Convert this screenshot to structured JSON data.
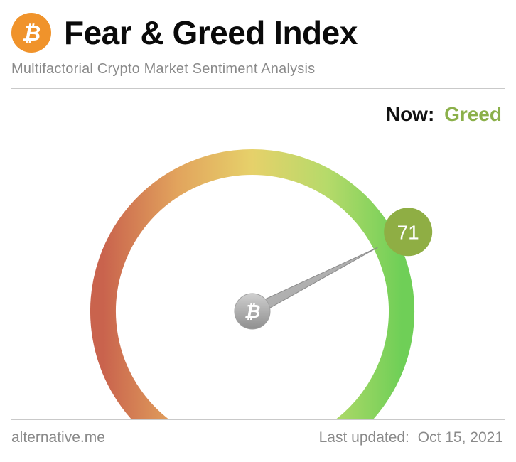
{
  "header": {
    "logo_icon": "bitcoin-icon",
    "logo_glyph": "₿",
    "title": "Fear & Greed Index",
    "subtitle": "Multifactorial Crypto Market Sentiment Analysis"
  },
  "status": {
    "now_label": "Now:",
    "now_value": "Greed",
    "now_color": "#8bb04a"
  },
  "gauge": {
    "value": 71,
    "min": 0,
    "max": 100,
    "badge_text": "71",
    "badge_color": "#8fae44",
    "hub_icon": "bitcoin-icon",
    "hub_glyph": "₿",
    "color_stops": [
      "#c9634d",
      "#e2a45d",
      "#e6d16a",
      "#b6da6a",
      "#6fcf57"
    ]
  },
  "footer": {
    "source": "alternative.me",
    "updated_label": "Last updated:",
    "updated_date": "Oct 15, 2021"
  }
}
